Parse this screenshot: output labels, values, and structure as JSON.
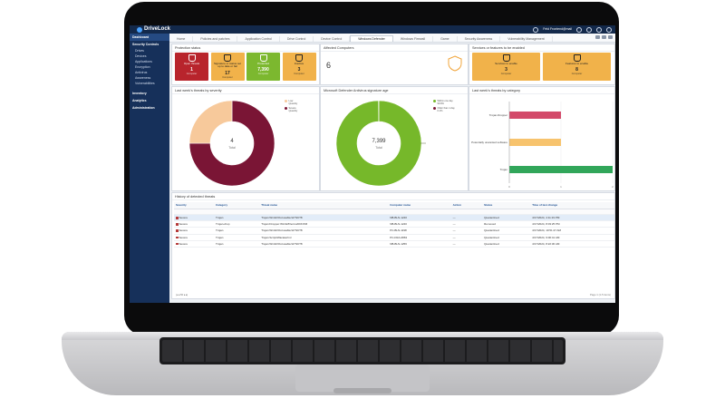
{
  "app": {
    "name": "DriveLock",
    "user": "Feld Frontend@mail"
  },
  "sidebar": {
    "dashboard": "Dashboard",
    "security_controls": "Security Controls",
    "items": [
      "Drives",
      "Devices",
      "Applications",
      "Encryption",
      "Antivirus",
      "Awareness",
      "Vulnerabilities"
    ],
    "inventory": "Inventory",
    "analytics": "Analytics",
    "administration": "Administration"
  },
  "tabs": [
    "Home",
    "Policies and patches",
    "Application Control",
    "Drive Control",
    "Device Control",
    "Windows Defender",
    "Windows Firewall",
    "Game",
    "Security Awareness",
    "Vulnerability Management"
  ],
  "active_tab": "Windows Defender",
  "protection": {
    "title": "Protection status",
    "tiles": [
      {
        "label": "Open threats",
        "count": "1",
        "sub": "Computer",
        "color": "#b8242c",
        "text": "#ffffff"
      },
      {
        "label": "Signature or status set up to date or fail",
        "count": "17",
        "sub": "Computer",
        "color": "#f1b24a",
        "text": "#222222"
      },
      {
        "label": "Protected",
        "count": "7,390",
        "sub": "Computer",
        "color": "#7cb82f",
        "text": "#ffffff"
      },
      {
        "label": "Inactive",
        "count": "3",
        "sub": "Computer",
        "color": "#f1b24a",
        "text": "#222222"
      }
    ]
  },
  "affected": {
    "title": "Affected Computers",
    "count": "6"
  },
  "services": {
    "title": "Services or features to be enabled",
    "tiles": [
      {
        "label": "Services to enable",
        "count": "3",
        "sub": "Computer",
        "color": "#f1b24a"
      },
      {
        "label": "Features to enable",
        "count": "8",
        "sub": "Computer",
        "color": "#f1b24a"
      }
    ]
  },
  "severity_chart": {
    "title": "Last week's threats by severity",
    "center_value": "4",
    "center_label": "Total",
    "legend": [
      {
        "label": "Low",
        "sub": "Quantity",
        "color": "#f7c99b"
      },
      {
        "label": "Severe",
        "sub": "Quantity",
        "color": "#7a1535"
      }
    ]
  },
  "signature_chart": {
    "title": "Microsoft Defender Antivirus signature age",
    "center_value": "7,399",
    "center_label": "Total",
    "legend": [
      {
        "label": "Within one day",
        "sub": "99.9%",
        "color": "#76b82a"
      },
      {
        "label": "Older than 1 day",
        "sub": "0.1%",
        "color": "#7a1535"
      }
    ]
  },
  "category_chart": {
    "title": "Last week's threats by category",
    "categories": [
      "Trojan-Dropper",
      "Potentially unwanted software",
      "Trojan"
    ]
  },
  "chart_data": [
    {
      "type": "pie",
      "title": "Last week's threats by severity",
      "labels": [
        "Severe",
        "Low"
      ],
      "values": [
        3,
        1
      ]
    },
    {
      "type": "pie",
      "title": "Microsoft Defender Antivirus signature age",
      "labels": [
        "Within one day",
        "Older than 1 day"
      ],
      "values": [
        99.9,
        0.1
      ]
    },
    {
      "type": "bar",
      "title": "Last week's threats by category",
      "orientation": "horizontal",
      "categories": [
        "Trojan-Dropper",
        "Potentially unwanted software",
        "Trojan"
      ],
      "values": [
        1,
        1,
        2
      ],
      "colors": [
        "#d34a6a",
        "#f7c36d",
        "#31a65a"
      ],
      "xlim": [
        0,
        2
      ],
      "grid": true
    }
  ],
  "history": {
    "title": "History of detected threats",
    "columns": [
      "Severity",
      "Category",
      "Threat name",
      "Computer name",
      "Action",
      "Status",
      "Time of last change"
    ],
    "rows": [
      [
        "Severe",
        "Trojan",
        "Trojan:Win32/Occusable!HYNKT8",
        "NB-BLN-1240",
        "—",
        "Quarantined",
        "4/17/2024, 4:11:19 PM"
      ],
      [
        "Severe",
        "Trojan-drop",
        "Trojan:Dropper:Win32/Flermab!DNXM",
        "NB-BLN-1240",
        "—",
        "Removed",
        "4/17/2024, 8:03:25 PM"
      ],
      [
        "Severe",
        "Trojan",
        "Trojan:Win32/Occusable!HYNKT8",
        "PC-BLN-1198",
        "—",
        "Quarantined",
        "4/17/2024, 10:51:47 AM"
      ],
      [
        "Severe",
        "Trojan",
        "Trojan:Script/Wacatac!ml",
        "PC-FRA-0863",
        "—",
        "Quarantined",
        "4/17/2024, 9:00:41 AM"
      ],
      [
        "Severe",
        "Trojan",
        "Trojan:Win32/Occusable!HYNKT8",
        "NB-BLN-1256",
        "—",
        "Quarantined",
        "4/17/2024, 8:22:30 AM"
      ]
    ],
    "pager": "|◂ ◂ 50 ▸ ▸|",
    "page_info": "Page 1 (1-5 items)"
  }
}
